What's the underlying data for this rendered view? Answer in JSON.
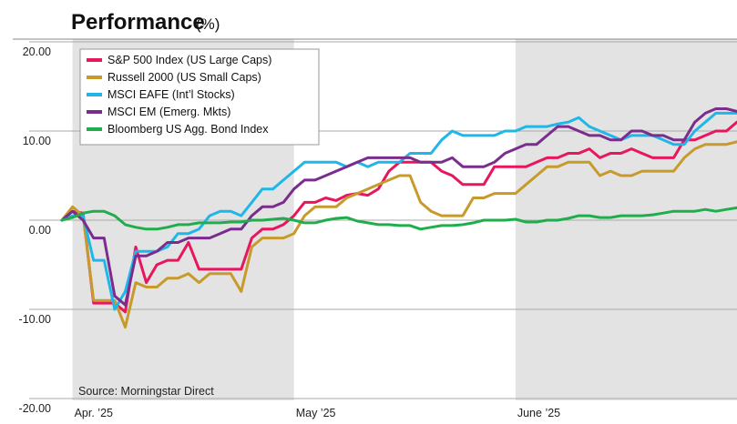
{
  "chart_data": {
    "type": "line",
    "title": "Performance",
    "title_unit": "(%)",
    "source": "Source: Morningstar Direct",
    "y_ticks": [
      "20.00",
      "10.00",
      "0.00",
      "-10.00",
      "-20.00"
    ],
    "ylim": [
      -21,
      22
    ],
    "xlim": [
      0,
      64
    ],
    "x_ticks": [
      {
        "label": "Apr. ’25",
        "x": 1
      },
      {
        "label": "May ’25",
        "x": 22
      },
      {
        "label": "June ’25",
        "x": 43
      }
    ],
    "shaded_periods": [
      [
        1,
        22
      ],
      [
        43,
        64
      ]
    ],
    "grid": "horizontal",
    "legend_position": "top-left",
    "series": [
      {
        "name": "S&P 500 Index (US Large Caps)",
        "color": "#e8155f",
        "x": [
          0,
          1,
          2,
          3,
          4,
          5,
          6,
          7,
          8,
          9,
          10,
          11,
          12,
          13,
          14,
          15,
          16,
          17,
          18,
          19,
          20,
          21,
          22,
          23,
          24,
          25,
          26,
          27,
          28,
          29,
          30,
          31,
          32,
          33,
          34,
          35,
          36,
          37,
          38,
          39,
          40,
          41,
          42,
          43,
          44,
          45,
          46,
          47,
          48,
          49,
          50,
          51,
          52,
          53,
          54,
          55,
          56,
          57,
          58,
          59,
          60,
          61,
          62,
          63,
          64
        ],
        "y": [
          0.0,
          1.0,
          0.8,
          -9.3,
          -9.3,
          -9.3,
          -10.3,
          -3.0,
          -7.0,
          -5.0,
          -4.5,
          -4.5,
          -2.5,
          -5.5,
          -5.5,
          -5.5,
          -5.5,
          -5.5,
          -2.0,
          -1.0,
          -1.0,
          -0.5,
          0.5,
          2.0,
          2.0,
          2.5,
          2.2,
          2.8,
          3.0,
          2.8,
          3.5,
          5.5,
          6.5,
          6.5,
          6.5,
          6.5,
          5.5,
          5.0,
          4.0,
          4.0,
          4.0,
          6.0,
          6.0,
          6.0,
          6.0,
          6.5,
          7.0,
          7.0,
          7.5,
          7.5,
          8.0,
          7.0,
          7.5,
          7.5,
          8.0,
          7.5,
          7.0,
          7.0,
          7.0,
          9.0,
          9.0,
          9.5,
          10.0,
          10.0,
          11.0
        ]
      },
      {
        "name": "Russell 2000 (US Small Caps)",
        "color": "#c79a2b",
        "x": [
          0,
          1,
          2,
          3,
          4,
          5,
          6,
          7,
          8,
          9,
          10,
          11,
          12,
          13,
          14,
          15,
          16,
          17,
          18,
          19,
          20,
          21,
          22,
          23,
          24,
          25,
          26,
          27,
          28,
          29,
          30,
          31,
          32,
          33,
          34,
          35,
          36,
          37,
          38,
          39,
          40,
          41,
          42,
          43,
          44,
          45,
          46,
          47,
          48,
          49,
          50,
          51,
          52,
          53,
          54,
          55,
          56,
          57,
          58,
          59,
          60,
          61,
          62,
          63,
          64
        ],
        "y": [
          0.0,
          1.5,
          0.5,
          -9.0,
          -9.0,
          -9.0,
          -12.0,
          -7.0,
          -7.5,
          -7.5,
          -6.5,
          -6.5,
          -6.0,
          -7.0,
          -6.0,
          -6.0,
          -6.0,
          -8.0,
          -3.0,
          -2.0,
          -2.0,
          -2.0,
          -1.5,
          0.5,
          1.5,
          1.5,
          1.5,
          2.5,
          3.0,
          3.5,
          4.0,
          4.5,
          5.0,
          5.0,
          2.0,
          1.0,
          0.5,
          0.5,
          0.5,
          2.5,
          2.5,
          3.0,
          3.0,
          3.0,
          4.0,
          5.0,
          6.0,
          6.0,
          6.5,
          6.5,
          6.5,
          5.0,
          5.5,
          5.0,
          5.0,
          5.5,
          5.5,
          5.5,
          5.5,
          7.0,
          8.0,
          8.5,
          8.5,
          8.5,
          8.8
        ]
      },
      {
        "name": "MSCI EAFE (Int’l Stocks)",
        "color": "#1fb7ea",
        "x": [
          0,
          1,
          2,
          3,
          4,
          5,
          6,
          7,
          8,
          9,
          10,
          11,
          12,
          13,
          14,
          15,
          16,
          17,
          18,
          19,
          20,
          21,
          22,
          23,
          24,
          25,
          26,
          27,
          28,
          29,
          30,
          31,
          32,
          33,
          34,
          35,
          36,
          37,
          38,
          39,
          40,
          41,
          42,
          43,
          44,
          45,
          46,
          47,
          48,
          49,
          50,
          51,
          52,
          53,
          54,
          55,
          56,
          57,
          58,
          59,
          60,
          61,
          62,
          63,
          64
        ],
        "y": [
          0.0,
          0.5,
          0.5,
          -4.5,
          -4.5,
          -10.0,
          -8.0,
          -3.5,
          -3.5,
          -3.5,
          -3.0,
          -1.5,
          -1.5,
          -1.0,
          0.5,
          1.0,
          1.0,
          0.5,
          2.0,
          3.5,
          3.5,
          4.5,
          5.5,
          6.5,
          6.5,
          6.5,
          6.5,
          6.0,
          6.5,
          6.0,
          6.5,
          6.5,
          6.5,
          7.5,
          7.5,
          7.5,
          9.0,
          10.0,
          9.5,
          9.5,
          9.5,
          9.5,
          10.0,
          10.0,
          10.5,
          10.5,
          10.5,
          10.8,
          11.0,
          11.5,
          10.5,
          10.0,
          9.5,
          9.0,
          9.5,
          9.5,
          9.5,
          9.0,
          8.5,
          8.5,
          10.0,
          11.0,
          12.0,
          12.0,
          12.0
        ]
      },
      {
        "name": "MSCI EM (Emerg. Mkts)",
        "color": "#7a2d8c",
        "x": [
          0,
          1,
          2,
          3,
          4,
          5,
          6,
          7,
          8,
          9,
          10,
          11,
          12,
          13,
          14,
          15,
          16,
          17,
          18,
          19,
          20,
          21,
          22,
          23,
          24,
          25,
          26,
          27,
          28,
          29,
          30,
          31,
          32,
          33,
          34,
          35,
          36,
          37,
          38,
          39,
          40,
          41,
          42,
          43,
          44,
          45,
          46,
          47,
          48,
          49,
          50,
          51,
          52,
          53,
          54,
          55,
          56,
          57,
          58,
          59,
          60,
          61,
          62,
          63,
          64
        ],
        "y": [
          0.0,
          1.0,
          0.0,
          -2.0,
          -2.0,
          -8.5,
          -9.5,
          -4.0,
          -4.0,
          -3.5,
          -2.5,
          -2.5,
          -2.0,
          -2.0,
          -2.0,
          -1.5,
          -1.0,
          -1.0,
          0.5,
          1.5,
          1.5,
          2.0,
          3.5,
          4.5,
          4.5,
          5.0,
          5.5,
          6.0,
          6.5,
          7.0,
          7.0,
          7.0,
          7.0,
          7.0,
          6.5,
          6.5,
          6.5,
          7.0,
          6.0,
          6.0,
          6.0,
          6.5,
          7.5,
          8.0,
          8.5,
          8.5,
          9.5,
          10.5,
          10.5,
          10.0,
          9.5,
          9.5,
          9.0,
          9.0,
          10.0,
          10.0,
          9.5,
          9.5,
          9.0,
          9.0,
          11.0,
          12.0,
          12.5,
          12.5,
          12.2
        ]
      },
      {
        "name": "Bloomberg US Agg. Bond Index",
        "color": "#1fae4b",
        "x": [
          0,
          1,
          2,
          3,
          4,
          5,
          6,
          7,
          8,
          9,
          10,
          11,
          12,
          13,
          14,
          15,
          16,
          17,
          18,
          19,
          20,
          21,
          22,
          23,
          24,
          25,
          26,
          27,
          28,
          29,
          30,
          31,
          32,
          33,
          34,
          35,
          36,
          37,
          38,
          39,
          40,
          41,
          42,
          43,
          44,
          45,
          46,
          47,
          48,
          49,
          50,
          51,
          52,
          53,
          54,
          55,
          56,
          57,
          58,
          59,
          60,
          61,
          62,
          63,
          64
        ],
        "y": [
          0.0,
          0.3,
          0.8,
          1.0,
          1.0,
          0.5,
          -0.5,
          -0.8,
          -1.0,
          -1.0,
          -0.8,
          -0.5,
          -0.5,
          -0.3,
          -0.3,
          -0.3,
          -0.2,
          -0.2,
          0.0,
          0.0,
          0.1,
          0.2,
          0.0,
          -0.3,
          -0.3,
          0.0,
          0.2,
          0.3,
          -0.1,
          -0.3,
          -0.5,
          -0.5,
          -0.6,
          -0.6,
          -1.0,
          -0.8,
          -0.6,
          -0.6,
          -0.5,
          -0.3,
          0.0,
          0.0,
          0.0,
          0.1,
          -0.2,
          -0.2,
          0.0,
          0.0,
          0.2,
          0.5,
          0.5,
          0.3,
          0.3,
          0.5,
          0.5,
          0.5,
          0.6,
          0.8,
          1.0,
          1.0,
          1.0,
          1.2,
          1.0,
          1.2,
          1.4
        ]
      }
    ]
  }
}
